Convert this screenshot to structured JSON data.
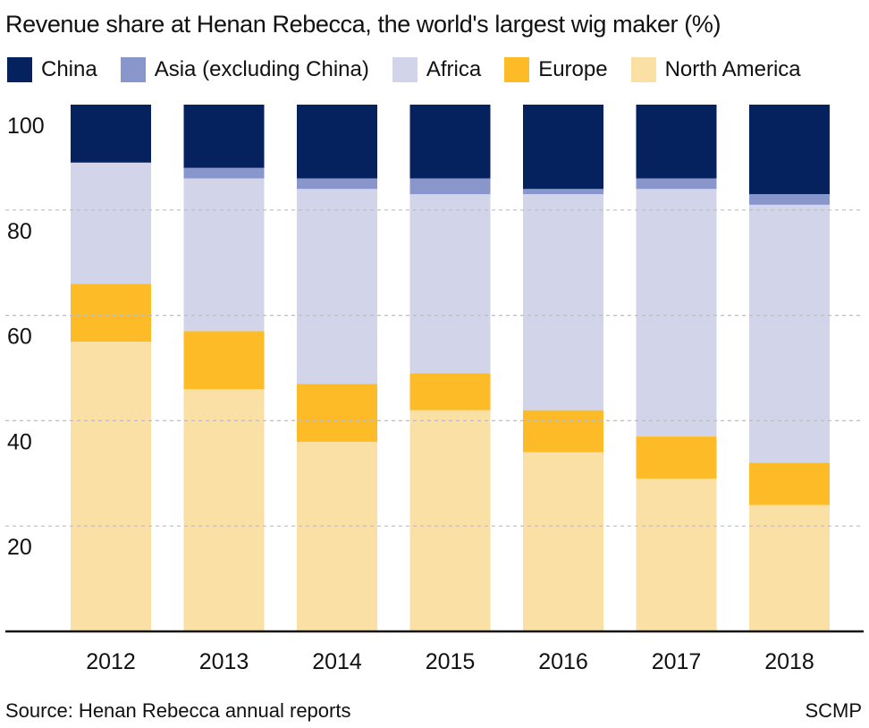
{
  "title": "Revenue share at Henan Rebecca, the world's largest wig maker (%)",
  "source": "Source: Henan Rebecca annual reports",
  "credit": "SCMP",
  "legend_position": "top",
  "chart_data": {
    "type": "bar",
    "stacked": true,
    "title": "Revenue share at Henan Rebecca, the world's largest wig maker (%)",
    "xlabel": "",
    "ylabel": "",
    "ylim": [
      0,
      100
    ],
    "yticks": [
      20,
      40,
      60,
      80,
      100
    ],
    "grid": "dashed horizontal",
    "categories": [
      "2012",
      "2013",
      "2014",
      "2015",
      "2016",
      "2017",
      "2018"
    ],
    "series": [
      {
        "name": "North America",
        "color": "#fbe0a6",
        "values": [
          55,
          46,
          36,
          42,
          34,
          29,
          24
        ]
      },
      {
        "name": "Europe",
        "color": "#fcbb27",
        "values": [
          11,
          11,
          11,
          7,
          8,
          8,
          8
        ]
      },
      {
        "name": "Africa",
        "color": "#d2d4ea",
        "values": [
          23,
          29,
          37,
          34,
          41,
          47,
          49
        ]
      },
      {
        "name": "Asia (excluding China)",
        "color": "#8896cc",
        "values": [
          0,
          2,
          2,
          3,
          1,
          2,
          2
        ]
      },
      {
        "name": "China",
        "color": "#05225e",
        "values": [
          11,
          12,
          14,
          14,
          16,
          14,
          17
        ]
      }
    ],
    "legend_order": [
      "China",
      "Asia (excluding China)",
      "Africa",
      "Europe",
      "North America"
    ]
  }
}
